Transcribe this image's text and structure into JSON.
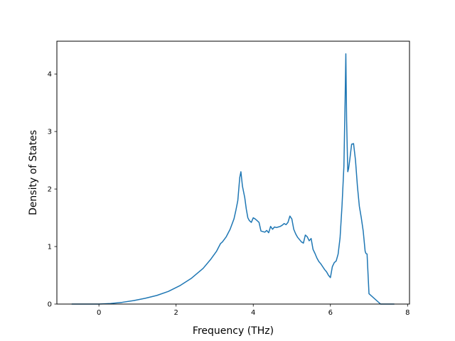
{
  "chart_data": {
    "type": "line",
    "xlabel": "Frequency (THz)",
    "ylabel": "Density of States",
    "xlim": [
      -1.09,
      8.05
    ],
    "ylim": [
      0,
      4.57
    ],
    "xticks": [
      0,
      2,
      4,
      6,
      8
    ],
    "xtick_labels": [
      "0",
      "2",
      "4",
      "6",
      "8"
    ],
    "yticks": [
      0,
      1,
      2,
      3,
      4
    ],
    "ytick_labels": [
      "0",
      "1",
      "2",
      "3",
      "4"
    ],
    "grid": false,
    "legend": "none",
    "series": [
      {
        "color": "#1f77b4",
        "x": [
          -0.7,
          0.0,
          0.3,
          0.6,
          0.9,
          1.2,
          1.5,
          1.8,
          2.1,
          2.4,
          2.7,
          2.9,
          3.05,
          3.15,
          3.2,
          3.3,
          3.4,
          3.5,
          3.55,
          3.6,
          3.65,
          3.68,
          3.72,
          3.78,
          3.82,
          3.86,
          3.9,
          3.95,
          4.0,
          4.05,
          4.1,
          4.15,
          4.2,
          4.3,
          4.35,
          4.4,
          4.45,
          4.5,
          4.55,
          4.6,
          4.65,
          4.7,
          4.75,
          4.8,
          4.85,
          4.9,
          4.95,
          5.0,
          5.05,
          5.1,
          5.15,
          5.2,
          5.25,
          5.3,
          5.35,
          5.4,
          5.45,
          5.5,
          5.55,
          5.6,
          5.65,
          5.7,
          5.75,
          5.8,
          5.85,
          5.9,
          5.95,
          6.0,
          6.05,
          6.1,
          6.15,
          6.2,
          6.25,
          6.3,
          6.35,
          6.38,
          6.4,
          6.42,
          6.45,
          6.47,
          6.5,
          6.55,
          6.6,
          6.65,
          6.7,
          6.75,
          6.8,
          6.85,
          6.9,
          6.92,
          6.95,
          7.0,
          7.3,
          7.65
        ],
        "y": [
          0.0,
          0.0,
          0.01,
          0.03,
          0.06,
          0.1,
          0.15,
          0.22,
          0.32,
          0.45,
          0.62,
          0.78,
          0.92,
          1.05,
          1.08,
          1.17,
          1.3,
          1.48,
          1.63,
          1.8,
          2.2,
          2.3,
          2.05,
          1.85,
          1.65,
          1.5,
          1.45,
          1.42,
          1.5,
          1.48,
          1.45,
          1.42,
          1.27,
          1.25,
          1.28,
          1.24,
          1.35,
          1.3,
          1.34,
          1.33,
          1.34,
          1.35,
          1.37,
          1.4,
          1.38,
          1.42,
          1.53,
          1.48,
          1.3,
          1.22,
          1.16,
          1.12,
          1.08,
          1.06,
          1.2,
          1.17,
          1.1,
          1.14,
          0.95,
          0.88,
          0.8,
          0.74,
          0.7,
          0.65,
          0.6,
          0.56,
          0.5,
          0.46,
          0.65,
          0.72,
          0.75,
          0.87,
          1.15,
          1.7,
          2.4,
          3.5,
          4.35,
          3.2,
          2.3,
          2.35,
          2.5,
          2.78,
          2.79,
          2.5,
          2.05,
          1.7,
          1.5,
          1.27,
          0.92,
          0.88,
          0.87,
          0.18,
          0.0,
          0.0
        ]
      }
    ]
  }
}
